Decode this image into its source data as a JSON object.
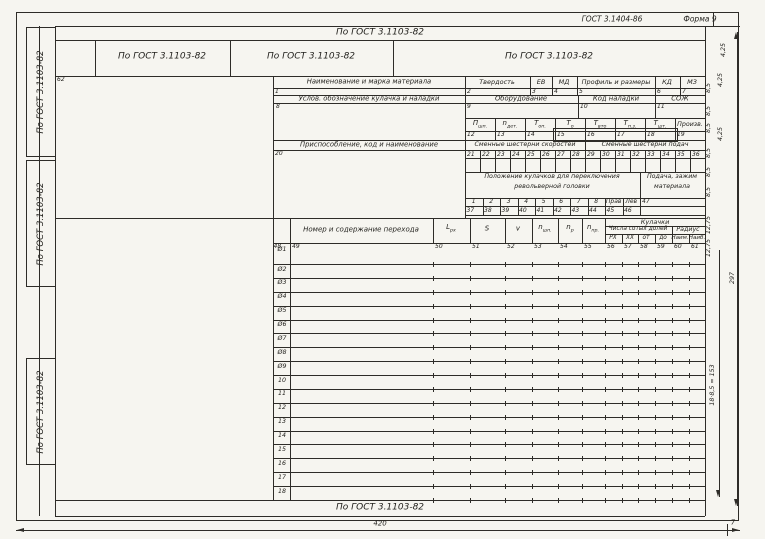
{
  "doc": {
    "standard": "ГОСТ 3.1404-86",
    "form_no": "Форма 9",
    "top_ref": "По ГОСТ 3.1103-82",
    "header_refs": [
      "По ГОСТ 3.1103-82",
      "По ГОСТ 3.1103-82",
      "По ГОСТ 3.1103-82"
    ],
    "side_refs": [
      "По ГОСТ 3.1103-82",
      "По ГОСТ 3.1103-82",
      "По ГОСТ 3.1103-82"
    ],
    "bottom_ref": "По ГОСТ 3.1103-82",
    "sketch_cell_no": "62"
  },
  "material": {
    "cols": [
      {
        "label": "Наименование и марка материала",
        "no": "1"
      },
      {
        "label": "Твердость",
        "no": "2"
      },
      {
        "label": "ЕВ",
        "no": "3"
      },
      {
        "label": "МД",
        "no": "4"
      },
      {
        "label": "Профиль и размеры",
        "no": "5"
      },
      {
        "label": "КД",
        "no": "6"
      },
      {
        "label": "МЗ",
        "no": "7"
      }
    ]
  },
  "setup": {
    "cols": [
      {
        "label": "Услов. обозначение кулачка и наладки",
        "no": "8"
      },
      {
        "label": "Оборудование",
        "no": "9"
      },
      {
        "label": "Код наладки",
        "no": "10"
      },
      {
        "label": "СОЖ",
        "no": "11"
      }
    ]
  },
  "modes": {
    "cols": [
      {
        "base": "П",
        "sub": "шп.",
        "no": "12"
      },
      {
        "base": "n",
        "sub": "дет.",
        "no": "13"
      },
      {
        "base": "Т",
        "sub": "оп.",
        "no": "14"
      },
      {
        "base": "Т",
        "sub": "о",
        "no": "15"
      },
      {
        "base": "Т",
        "sub": "вто",
        "no": "16"
      },
      {
        "base": "Т",
        "sub": "п.з.",
        "no": "17"
      },
      {
        "base": "Т",
        "sub": "шт.",
        "no": "18"
      },
      {
        "base": "Произв.",
        "sub": "",
        "no": "19"
      }
    ]
  },
  "fixture": {
    "label": "Приспособление, код и наименование",
    "no": "20"
  },
  "gears": {
    "speed_label": "Сменные шестерни скоростей",
    "feed_label": "Сменные шестерни подач",
    "numbers": [
      "21",
      "22",
      "23",
      "24",
      "25",
      "26",
      "27",
      "28",
      "29",
      "30",
      "31",
      "32",
      "33",
      "34",
      "35",
      "36"
    ]
  },
  "cam_switch": {
    "label_line1": "Положение кулачков для переключения",
    "label_line2": "револьверной головки",
    "sub_cols": [
      "1",
      "2",
      "3",
      "4",
      "5",
      "6",
      "7",
      "8",
      "Прав",
      "Лев"
    ],
    "numbers": [
      "37",
      "38",
      "39",
      "40",
      "41",
      "42",
      "43",
      "44",
      "45",
      "46"
    ],
    "feed_label_line1": "Подача, зажим",
    "feed_label_line2": "материала",
    "feed_no": "47"
  },
  "transitions": {
    "row_col_no": "48",
    "content_label": "Номер и содержание перехода",
    "content_no": "49",
    "params": [
      {
        "base": "L",
        "sub": "рх",
        "no": "50"
      },
      {
        "base": "S",
        "sub": "",
        "no": "51"
      },
      {
        "base": "v",
        "sub": "",
        "no": "52"
      },
      {
        "base": "n",
        "sub": "шп.",
        "no": "53"
      },
      {
        "base": "n",
        "sub": "р",
        "no": "54"
      },
      {
        "base": "n",
        "sub": "пр.",
        "no": "55"
      }
    ],
    "cams_title": "Кулачки",
    "hundredths_title": "Числа сотых долей",
    "hundredth_cols": [
      {
        "label": "РХ",
        "no": "56"
      },
      {
        "label": "ХХ",
        "no": "57"
      },
      {
        "label": "от",
        "no": "58"
      },
      {
        "label": "до",
        "no": "59"
      }
    ],
    "radius_title": "Радиус",
    "radius_cols": [
      {
        "label": "Наим.",
        "no": "60"
      },
      {
        "label": "Наиб.",
        "no": "61"
      }
    ],
    "row_numbers": [
      "Ø1",
      "Ø2",
      "Ø3",
      "Ø4",
      "Ø5",
      "Ø6",
      "Ø7",
      "Ø8",
      "Ø9",
      "10",
      "11",
      "12",
      "13",
      "14",
      "15",
      "16",
      "17",
      "18"
    ]
  },
  "dimensions": {
    "width": "420",
    "right_margin": "7",
    "height": "297",
    "row_calc": "18·8,5 = 153",
    "col_ticks": [
      "4,25",
      "8,5",
      "4,25",
      "8,5",
      "8,5",
      "4,25",
      "8,5",
      "8,5",
      "8,5",
      "12,75",
      "12,75"
    ]
  }
}
